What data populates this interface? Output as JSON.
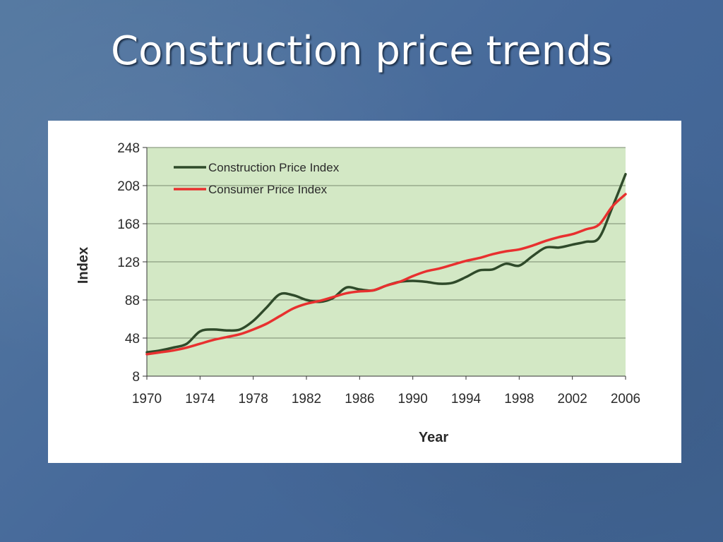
{
  "slide": {
    "title": "Construction price trends"
  },
  "colors": {
    "background": "#4a6f98",
    "plot_area": "#d3e8c5",
    "construction_series": "#2f4a2a",
    "consumer_series": "#e8302f",
    "gridline": "#7a8a6e"
  },
  "chart_data": {
    "type": "line",
    "title": "",
    "xlabel": "Year",
    "ylabel": "Index",
    "xlim": [
      1970,
      2006
    ],
    "ylim": [
      8,
      248
    ],
    "x_ticks": [
      1970,
      1974,
      1978,
      1982,
      1986,
      1990,
      1994,
      1998,
      2002,
      2006
    ],
    "y_ticks": [
      8,
      48,
      88,
      128,
      168,
      208,
      248
    ],
    "grid": "horizontal",
    "legend_position": "top-left",
    "x": [
      1970,
      1971,
      1972,
      1973,
      1974,
      1975,
      1976,
      1977,
      1978,
      1979,
      1980,
      1981,
      1982,
      1983,
      1984,
      1985,
      1986,
      1987,
      1988,
      1989,
      1990,
      1991,
      1992,
      1993,
      1994,
      1995,
      1996,
      1997,
      1998,
      1999,
      2000,
      2001,
      2002,
      2003,
      2004,
      2005,
      2006
    ],
    "series": [
      {
        "name": "Construction Price Index",
        "values": [
          33,
          35,
          38,
          42,
          55,
          57,
          56,
          57,
          66,
          80,
          94,
          93,
          88,
          86,
          90,
          101,
          99,
          98,
          103,
          107,
          108,
          107,
          105,
          106,
          112,
          119,
          120,
          126,
          124,
          134,
          143,
          143,
          146,
          149,
          153,
          185,
          220
        ]
      },
      {
        "name": "Consumer Price Index",
        "values": [
          31,
          33,
          35,
          38,
          42,
          46,
          49,
          52,
          57,
          63,
          71,
          79,
          84,
          87,
          91,
          95,
          97,
          98,
          103,
          107,
          113,
          118,
          121,
          125,
          129,
          132,
          136,
          139,
          141,
          145,
          150,
          154,
          157,
          162,
          167,
          186,
          199
        ]
      }
    ]
  }
}
